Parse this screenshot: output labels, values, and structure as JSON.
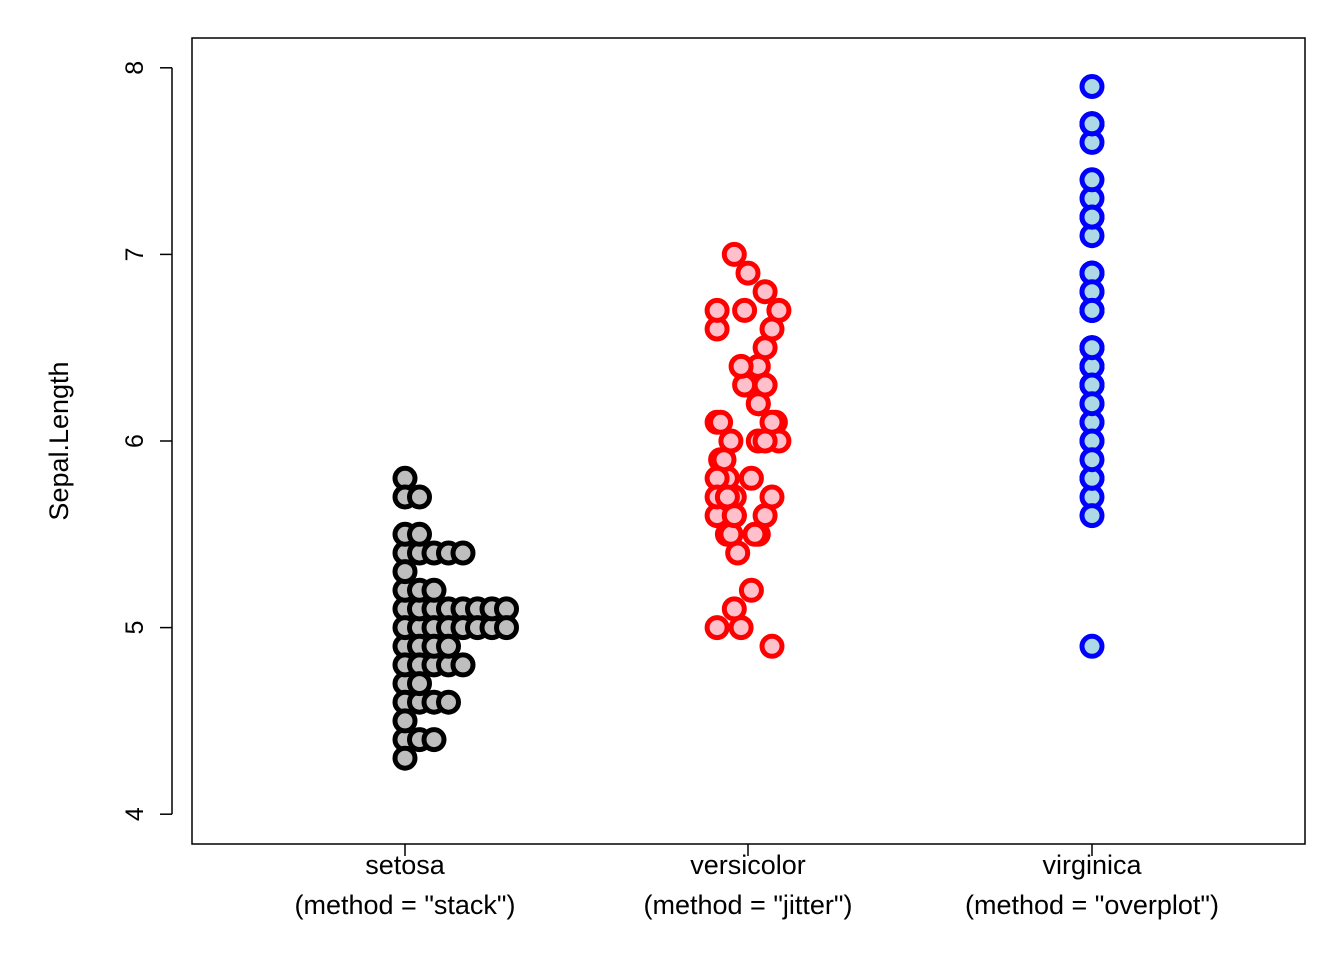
{
  "chart_data": {
    "type": "scatter",
    "subtype": "stripchart",
    "title": "",
    "xlabel": "",
    "ylabel": "Sepal.Length",
    "ylim": [
      3.85,
      8.15
    ],
    "yticks": [
      4,
      5,
      6,
      7,
      8
    ],
    "grid": false,
    "legend": "none",
    "groups": [
      {
        "name": "setosa",
        "label": "setosa",
        "sublabel": "(method = \"stack\")",
        "method": "stack",
        "stroke": "#000000",
        "fill": "#bebebe",
        "values": [
          5.1,
          4.9,
          4.7,
          4.6,
          5.0,
          5.4,
          4.6,
          5.0,
          4.4,
          4.9,
          5.4,
          4.8,
          4.8,
          4.3,
          5.8,
          5.7,
          5.4,
          5.1,
          5.7,
          5.1,
          5.4,
          5.1,
          4.6,
          5.1,
          4.8,
          5.0,
          5.0,
          5.2,
          5.2,
          4.7,
          4.8,
          5.4,
          5.2,
          5.5,
          4.9,
          5.0,
          5.5,
          4.9,
          4.4,
          5.1,
          5.0,
          4.5,
          4.4,
          5.0,
          5.1,
          4.8,
          5.1,
          4.6,
          5.3,
          5.0
        ]
      },
      {
        "name": "versicolor",
        "label": "versicolor",
        "sublabel": "(method = \"jitter\")",
        "method": "jitter",
        "stroke": "#ff0000",
        "fill": "#ffc0cb",
        "values": [
          7.0,
          6.4,
          6.9,
          5.5,
          6.5,
          5.7,
          6.3,
          4.9,
          6.6,
          5.2,
          5.0,
          5.9,
          6.0,
          6.1,
          5.6,
          6.7,
          5.6,
          5.8,
          6.2,
          5.6,
          5.9,
          6.1,
          6.3,
          6.1,
          6.4,
          6.6,
          6.8,
          6.7,
          6.0,
          5.7,
          5.5,
          5.5,
          5.8,
          6.0,
          5.4,
          6.0,
          6.7,
          6.3,
          5.6,
          5.5,
          5.5,
          6.1,
          5.8,
          5.0,
          5.6,
          5.7,
          5.7,
          6.2,
          5.1,
          5.7
        ],
        "jitter": [
          -0.04,
          0.03,
          0.0,
          -0.05,
          0.05,
          -0.08,
          0.0,
          0.07,
          -0.09,
          0.01,
          -0.09,
          -0.08,
          0.03,
          -0.09,
          0.05,
          -0.09,
          -0.04,
          -0.06,
          0.03,
          -0.09,
          -0.07,
          0.08,
          -0.01,
          0.07,
          -0.02,
          0.07,
          0.05,
          0.09,
          -0.05,
          -0.04,
          -0.06,
          0.03,
          0.01,
          0.09,
          -0.03,
          0.05,
          -0.01,
          0.05,
          -0.04,
          -0.05,
          0.02,
          -0.08,
          -0.09,
          -0.02,
          -0.04,
          -0.09,
          -0.06,
          0.03,
          -0.04,
          0.07
        ]
      },
      {
        "name": "virginica",
        "label": "virginica",
        "sublabel": "(method = \"overplot\")",
        "method": "overplot",
        "stroke": "#0000ff",
        "fill": "#add8e6",
        "values": [
          6.3,
          5.8,
          7.1,
          6.3,
          6.5,
          7.6,
          4.9,
          7.3,
          6.7,
          7.2,
          6.5,
          6.4,
          6.8,
          5.7,
          5.8,
          6.4,
          6.5,
          7.7,
          7.7,
          6.0,
          6.9,
          5.6,
          7.7,
          6.3,
          6.7,
          7.2,
          6.2,
          6.1,
          6.4,
          7.2,
          7.4,
          7.9,
          6.4,
          6.3,
          6.1,
          7.7,
          6.3,
          6.4,
          6.0,
          6.9,
          6.7,
          6.9,
          5.8,
          6.8,
          6.7,
          6.7,
          6.3,
          6.5,
          6.2,
          5.9
        ]
      }
    ]
  }
}
